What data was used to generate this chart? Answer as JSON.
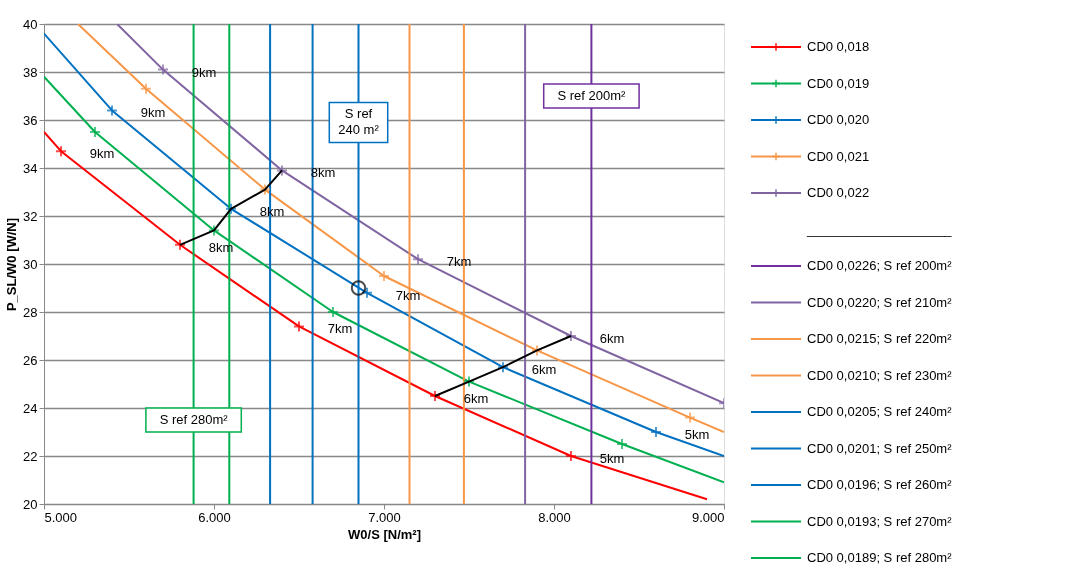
{
  "chart_data": {
    "type": "line",
    "xlabel": "W0/S [N/m²]",
    "ylabel": "P_SL/W0 [W/N]",
    "xlim": [
      5000,
      9000
    ],
    "ylim": [
      20,
      40
    ],
    "xticks": [
      {
        "value": 5000,
        "label": "5.000"
      },
      {
        "value": 6000,
        "label": "6.000"
      },
      {
        "value": 7000,
        "label": "7.000"
      },
      {
        "value": 8000,
        "label": "8.000"
      },
      {
        "value": 9000,
        "label": "9.000"
      }
    ],
    "yticks": [
      20,
      22,
      24,
      26,
      28,
      30,
      32,
      34,
      36,
      38,
      40
    ],
    "grid": "y",
    "legend": "right",
    "line_style": "solid",
    "series": [
      {
        "name": "CD0 0,018",
        "color": "#ff0000",
        "x": [
          5000,
          5100,
          5800,
          6500,
          7300,
          8100,
          8900
        ],
        "values": [
          35.5,
          34.7,
          30.8,
          27.4,
          24.5,
          22.0,
          20.2
        ]
      },
      {
        "name": "CD0 0,019",
        "color": "#00b050",
        "x": [
          5000,
          5300,
          6000,
          6700,
          7500,
          8400,
          9000
        ],
        "values": [
          37.8,
          35.5,
          31.4,
          28.0,
          25.1,
          22.5,
          20.9
        ]
      },
      {
        "name": "CD0 0,020",
        "color": "#0070c0",
        "x": [
          5000,
          5400,
          6100,
          6900,
          7700,
          8600,
          9000
        ],
        "values": [
          39.6,
          36.4,
          32.3,
          28.8,
          25.7,
          23.0,
          22.0
        ]
      },
      {
        "name": "CD0 0,021",
        "color": "#f79646",
        "x": [
          5200,
          5600,
          6300,
          7000,
          7900,
          8800,
          9000
        ],
        "values": [
          40.0,
          37.3,
          33.1,
          29.5,
          26.4,
          23.6,
          23.0
        ]
      },
      {
        "name": "CD0 0,022",
        "color": "#8064a2",
        "x": [
          5430,
          5700,
          6400,
          7200,
          8100,
          9000
        ],
        "values": [
          40.0,
          38.1,
          33.9,
          30.2,
          27.0,
          24.2
        ]
      },
      {
        "name": "CD0 0,0226; S ref 200m²",
        "color": "#7030a0",
        "x": [
          8220,
          8220
        ],
        "values": [
          20,
          40
        ]
      },
      {
        "name": "CD0 0,0220; S ref 210m²",
        "color": "#8064a2",
        "x": [
          7830,
          7830
        ],
        "values": [
          20,
          40
        ]
      },
      {
        "name": "CD0 0,0215; S ref 220m²",
        "color": "#f79646",
        "x": [
          7470,
          7470
        ],
        "values": [
          20,
          40
        ]
      },
      {
        "name": "CD0 0,0210; S ref 230m²",
        "color": "#f79646",
        "x": [
          7150,
          7150
        ],
        "values": [
          20,
          40
        ]
      },
      {
        "name": "CD0 0,0205; S ref 240m²",
        "color": "#0070c0",
        "x": [
          6850,
          6850
        ],
        "values": [
          20,
          40
        ]
      },
      {
        "name": "CD0 0,0201; S ref 250m²",
        "color": "#0070c0",
        "x": [
          6580,
          6580
        ],
        "values": [
          20,
          40
        ]
      },
      {
        "name": "CD0 0,0196; S ref 260m²",
        "color": "#0070c0",
        "x": [
          6330,
          6330
        ],
        "values": [
          20,
          40
        ]
      },
      {
        "name": "CD0 0,0193; S ref 270m²",
        "color": "#00b050",
        "x": [
          6090,
          6090
        ],
        "values": [
          20,
          40
        ]
      },
      {
        "name": "CD0 0,0189; S ref 280m²",
        "color": "#00b050",
        "x": [
          5880,
          5880
        ],
        "values": [
          20,
          40
        ]
      },
      {
        "type": "scatter",
        "marker": "cross",
        "color": "#ff0000",
        "x": [
          5100,
          5800,
          6500,
          7300,
          8100
        ],
        "values": [
          34.7,
          30.8,
          27.4,
          24.5,
          22.0
        ]
      },
      {
        "type": "scatter",
        "marker": "cross",
        "color": "#00b050",
        "x": [
          5300,
          6000,
          6700,
          7500,
          8400
        ],
        "values": [
          35.5,
          31.4,
          28.0,
          25.1,
          22.5
        ]
      },
      {
        "type": "scatter",
        "marker": "cross",
        "color": "#0070c0",
        "x": [
          5400,
          6100,
          6900,
          7700,
          8600
        ],
        "values": [
          36.4,
          32.3,
          28.8,
          25.7,
          23.0
        ]
      },
      {
        "type": "scatter",
        "marker": "cross",
        "color": "#f79646",
        "x": [
          5600,
          6300,
          7000,
          7900,
          8800
        ],
        "values": [
          37.3,
          33.1,
          29.5,
          26.4,
          23.6
        ]
      },
      {
        "type": "scatter",
        "marker": "cross",
        "color": "#8064a2",
        "x": [
          5700,
          6400,
          7200,
          8100,
          9000
        ],
        "values": [
          38.1,
          33.9,
          30.2,
          27.0,
          24.2
        ]
      },
      {
        "color": "#000000",
        "x": [
          5800,
          6000,
          6100,
          6300,
          6400
        ],
        "values": [
          30.8,
          31.4,
          32.3,
          33.1,
          33.9
        ]
      },
      {
        "color": "#000000",
        "x": [
          7300,
          7500,
          7700,
          7900,
          8100
        ],
        "values": [
          24.5,
          25.1,
          25.7,
          26.4,
          27.0
        ]
      },
      {
        "type": "scatter",
        "marker": "circle",
        "color": "#000000",
        "x": [
          6850
        ],
        "values": [
          29.0
        ]
      }
    ],
    "annotations": [
      {
        "text": "S ref\n240 m²",
        "x": 6850,
        "y": 35.9
      },
      {
        "text": "S ref 200m²",
        "x": 8220,
        "y": 37.0
      },
      {
        "text": "S ref 280m²",
        "x": 5880,
        "y": 23.5
      },
      {
        "text": "9km",
        "x": 5100,
        "y": 34.7
      },
      {
        "text": "9km",
        "x": 5400,
        "y": 36.4
      },
      {
        "text": "9km",
        "x": 5700,
        "y": 38.1
      },
      {
        "text": "8km",
        "x": 6400,
        "y": 33.9
      },
      {
        "text": "8km",
        "x": 6100,
        "y": 32.3
      },
      {
        "text": "8km",
        "x": 5800,
        "y": 30.8
      },
      {
        "text": "7km",
        "x": 7200,
        "y": 30.2
      },
      {
        "text": "7km",
        "x": 6900,
        "y": 28.8
      },
      {
        "text": "7km",
        "x": 6500,
        "y": 27.4
      },
      {
        "text": "6km",
        "x": 8100,
        "y": 27.0
      },
      {
        "text": "6km",
        "x": 7700,
        "y": 25.7
      },
      {
        "text": "6km",
        "x": 7300,
        "y": 24.5
      },
      {
        "text": "5km",
        "x": 8600,
        "y": 23.0
      },
      {
        "text": "5km",
        "x": 8100,
        "y": 22.0
      },
      "____________________"
    ]
  }
}
